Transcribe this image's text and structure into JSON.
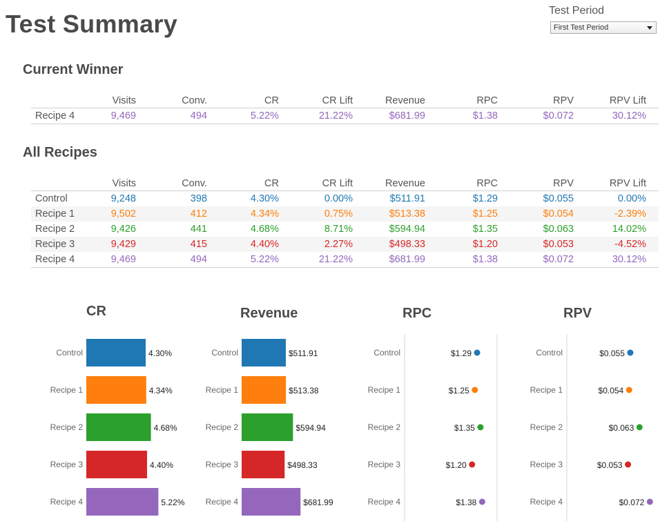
{
  "page": {
    "title": "Test Summary",
    "period_label": "Test Period",
    "period_value": "First Test Period"
  },
  "colors": {
    "Control": "#1f77b4",
    "Recipe 1": "#ff7f0e",
    "Recipe 2": "#2ca02c",
    "Recipe 3": "#d62728",
    "Recipe 4": "#9467bd"
  },
  "columns": [
    "Visits",
    "Conv.",
    "CR",
    "CR Lift",
    "Revenue",
    "RPC",
    "RPV",
    "RPV Lift"
  ],
  "current_winner": {
    "title": "Current Winner",
    "rows": [
      {
        "name": "Recipe 4",
        "values": [
          "9,469",
          "494",
          "5.22%",
          "21.22%",
          "$681.99",
          "$1.38",
          "$0.072",
          "30.12%"
        ]
      }
    ]
  },
  "all_recipes": {
    "title": "All Recipes",
    "rows": [
      {
        "name": "Control",
        "values": [
          "9,248",
          "398",
          "4.30%",
          "0.00%",
          "$511.91",
          "$1.29",
          "$0.055",
          "0.00%"
        ]
      },
      {
        "name": "Recipe 1",
        "values": [
          "9,502",
          "412",
          "4.34%",
          "0.75%",
          "$513.38",
          "$1.25",
          "$0.054",
          "-2.39%"
        ]
      },
      {
        "name": "Recipe 2",
        "values": [
          "9,426",
          "441",
          "4.68%",
          "8.71%",
          "$594.94",
          "$1.35",
          "$0.063",
          "14.02%"
        ]
      },
      {
        "name": "Recipe 3",
        "values": [
          "9,429",
          "415",
          "4.40%",
          "2.27%",
          "$498.33",
          "$1.20",
          "$0.053",
          "-4.52%"
        ]
      },
      {
        "name": "Recipe 4",
        "values": [
          "9,469",
          "494",
          "5.22%",
          "21.22%",
          "$681.99",
          "$1.38",
          "$0.072",
          "30.12%"
        ]
      }
    ]
  },
  "chart_data": [
    {
      "type": "bar",
      "title": "CR",
      "categories": [
        "Control",
        "Recipe 1",
        "Recipe 2",
        "Recipe 3",
        "Recipe 4"
      ],
      "values": [
        4.3,
        4.34,
        4.68,
        4.4,
        5.22
      ],
      "labels": [
        "4.30%",
        "4.34%",
        "4.68%",
        "4.40%",
        "5.22%"
      ],
      "xlim": [
        0,
        6.0
      ]
    },
    {
      "type": "bar",
      "title": "Revenue",
      "categories": [
        "Control",
        "Recipe 1",
        "Recipe 2",
        "Recipe 3",
        "Recipe 4"
      ],
      "values": [
        511.91,
        513.38,
        594.94,
        498.33,
        681.99
      ],
      "labels": [
        "$511.91",
        "$513.38",
        "$594.94",
        "$498.33",
        "$681.99"
      ],
      "xlim": [
        0,
        800
      ]
    },
    {
      "type": "scatter",
      "title": "RPC",
      "categories": [
        "Control",
        "Recipe 1",
        "Recipe 2",
        "Recipe 3",
        "Recipe 4"
      ],
      "values": [
        1.29,
        1.25,
        1.35,
        1.2,
        1.38
      ],
      "labels": [
        "$1.29",
        "$1.25",
        "$1.35",
        "$1.20",
        "$1.38"
      ],
      "xlim": [
        0,
        1.4
      ]
    },
    {
      "type": "scatter",
      "title": "RPV",
      "categories": [
        "Control",
        "Recipe 1",
        "Recipe 2",
        "Recipe 3",
        "Recipe 4"
      ],
      "values": [
        0.055,
        0.054,
        0.063,
        0.053,
        0.072
      ],
      "labels": [
        "$0.055",
        "$0.054",
        "$0.063",
        "$0.053",
        "$0.072"
      ],
      "xlim": [
        0,
        0.073
      ]
    }
  ]
}
